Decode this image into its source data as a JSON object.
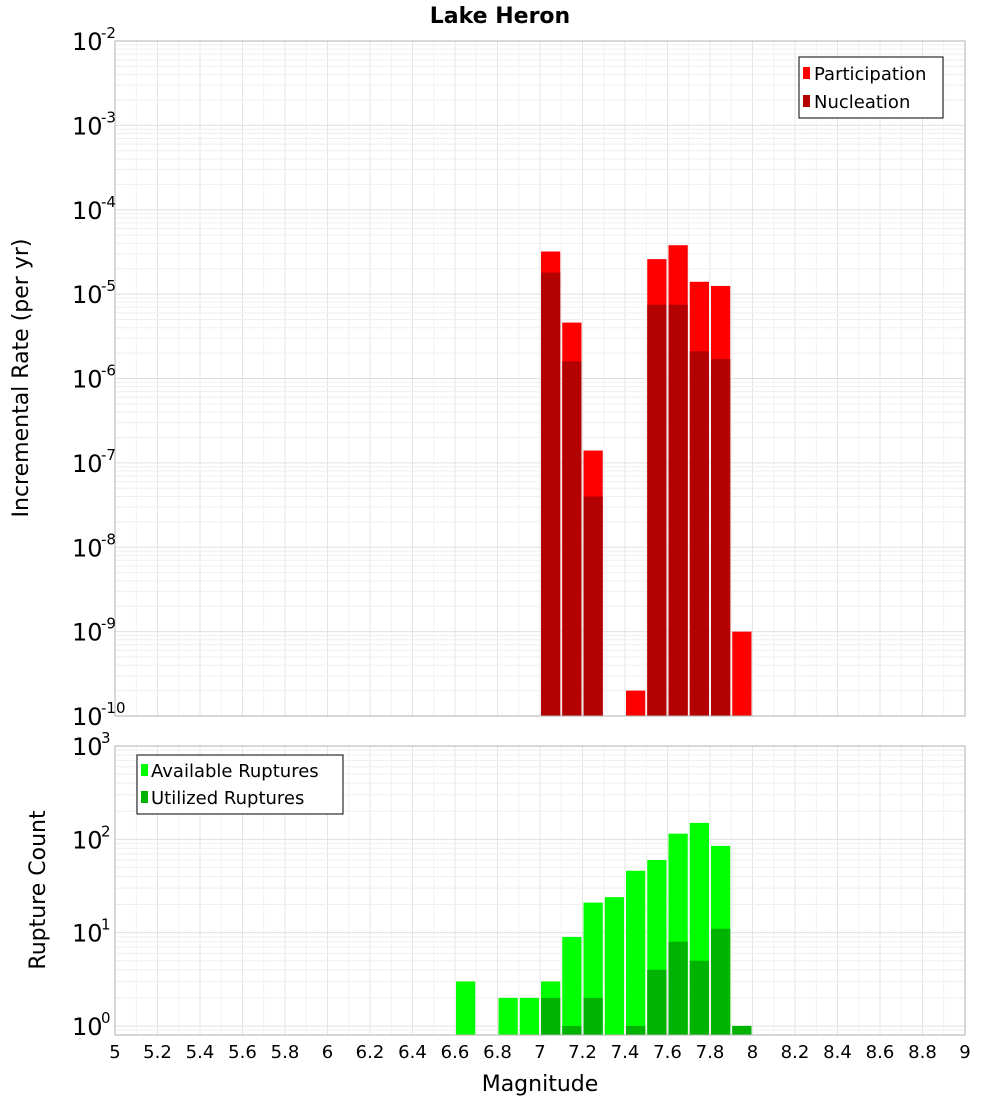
{
  "chart_data": [
    {
      "type": "bar",
      "title": "Lake Heron",
      "xlabel": "",
      "ylabel": "Incremental Rate (per yr)",
      "yscale": "log",
      "xlim": [
        5,
        9
      ],
      "ylim": [
        1e-10,
        0.01
      ],
      "ytick_base": "10",
      "ytick_exponents": [
        "-10",
        "-9",
        "-8",
        "-7",
        "-6",
        "-5",
        "-4",
        "-3",
        "-2"
      ],
      "legend_position": "top-right",
      "bin_width": 0.1,
      "series": [
        {
          "name": "Participation",
          "color": "#ff0000",
          "points": [
            {
              "x": 7.05,
              "y": 3.2e-05
            },
            {
              "x": 7.15,
              "y": 4.6e-06
            },
            {
              "x": 7.25,
              "y": 1.4e-07
            },
            {
              "x": 7.45,
              "y": 2e-10
            },
            {
              "x": 7.55,
              "y": 2.6e-05
            },
            {
              "x": 7.65,
              "y": 3.8e-05
            },
            {
              "x": 7.75,
              "y": 1.4e-05
            },
            {
              "x": 7.85,
              "y": 1.25e-05
            },
            {
              "x": 7.95,
              "y": 1e-09
            }
          ]
        },
        {
          "name": "Nucleation",
          "color": "#b30000",
          "points": [
            {
              "x": 7.05,
              "y": 1.8e-05
            },
            {
              "x": 7.15,
              "y": 1.6e-06
            },
            {
              "x": 7.25,
              "y": 4e-08
            },
            {
              "x": 7.55,
              "y": 7.5e-06
            },
            {
              "x": 7.65,
              "y": 7.5e-06
            },
            {
              "x": 7.75,
              "y": 2.1e-06
            },
            {
              "x": 7.85,
              "y": 1.7e-06
            }
          ]
        }
      ]
    },
    {
      "type": "bar",
      "title": "",
      "xlabel": "Magnitude",
      "ylabel": "Rupture Count",
      "yscale": "log",
      "xlim": [
        5,
        9
      ],
      "ylim": [
        0.8,
        1000
      ],
      "ytick_base": "10",
      "ytick_exponents": [
        "0",
        "1",
        "2",
        "3"
      ],
      "xticks": [
        "5",
        "5.2",
        "5.4",
        "5.6",
        "5.8",
        "6",
        "6.2",
        "6.4",
        "6.6",
        "6.8",
        "7",
        "7.2",
        "7.4",
        "7.6",
        "7.8",
        "8",
        "8.2",
        "8.4",
        "8.6",
        "8.8",
        "9"
      ],
      "legend_position": "top-left",
      "bin_width": 0.1,
      "series": [
        {
          "name": "Available Ruptures",
          "color": "#00ff00",
          "points": [
            {
              "x": 6.65,
              "y": 3
            },
            {
              "x": 6.85,
              "y": 2
            },
            {
              "x": 6.95,
              "y": 2
            },
            {
              "x": 7.05,
              "y": 3
            },
            {
              "x": 7.15,
              "y": 9
            },
            {
              "x": 7.25,
              "y": 21
            },
            {
              "x": 7.35,
              "y": 24
            },
            {
              "x": 7.45,
              "y": 46
            },
            {
              "x": 7.55,
              "y": 60
            },
            {
              "x": 7.65,
              "y": 115
            },
            {
              "x": 7.75,
              "y": 150
            },
            {
              "x": 7.85,
              "y": 85
            },
            {
              "x": 7.95,
              "y": 1
            }
          ]
        },
        {
          "name": "Utilized Ruptures",
          "color": "#00b300",
          "points": [
            {
              "x": 7.05,
              "y": 2
            },
            {
              "x": 7.15,
              "y": 1
            },
            {
              "x": 7.25,
              "y": 2
            },
            {
              "x": 7.45,
              "y": 1
            },
            {
              "x": 7.55,
              "y": 4
            },
            {
              "x": 7.65,
              "y": 8
            },
            {
              "x": 7.75,
              "y": 5
            },
            {
              "x": 7.85,
              "y": 11
            },
            {
              "x": 7.95,
              "y": 1
            }
          ]
        }
      ]
    }
  ]
}
